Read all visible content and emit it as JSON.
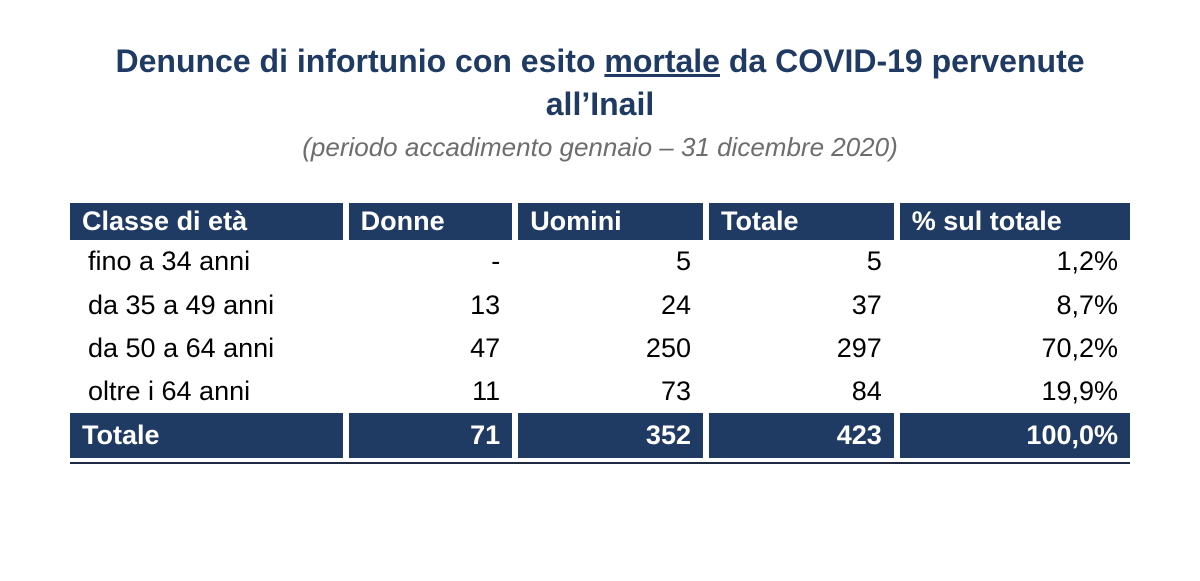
{
  "title_pre": "Denunce di infortunio con esito ",
  "title_underlined": "mortale",
  "title_post": " da COVID-19 pervenute all’Inail",
  "subtitle": "(periodo accadimento gennaio – 31 dicembre 2020)",
  "table": {
    "type": "table",
    "header_bg": "#1f3a63",
    "header_fg": "#ffffff",
    "body_fg": "#000000",
    "gap_color": "#ffffff",
    "rule_color": "#1f2a40",
    "font_size_pt": 20,
    "columns": [
      "Classe di età",
      "Donne",
      "Uomini",
      "Totale",
      "% sul totale"
    ],
    "col_align": [
      "left",
      "right",
      "right",
      "right",
      "right"
    ],
    "rows": [
      [
        "fino a 34 anni",
        "-",
        "5",
        "5",
        "1,2%"
      ],
      [
        "da 35 a 49 anni",
        "13",
        "24",
        "37",
        "8,7%"
      ],
      [
        "da 50 a 64 anni",
        "47",
        "250",
        "297",
        "70,2%"
      ],
      [
        "oltre i 64 anni",
        "11",
        "73",
        "84",
        "19,9%"
      ]
    ],
    "total_row": [
      "Totale",
      "71",
      "352",
      "423",
      "100,0%"
    ]
  }
}
